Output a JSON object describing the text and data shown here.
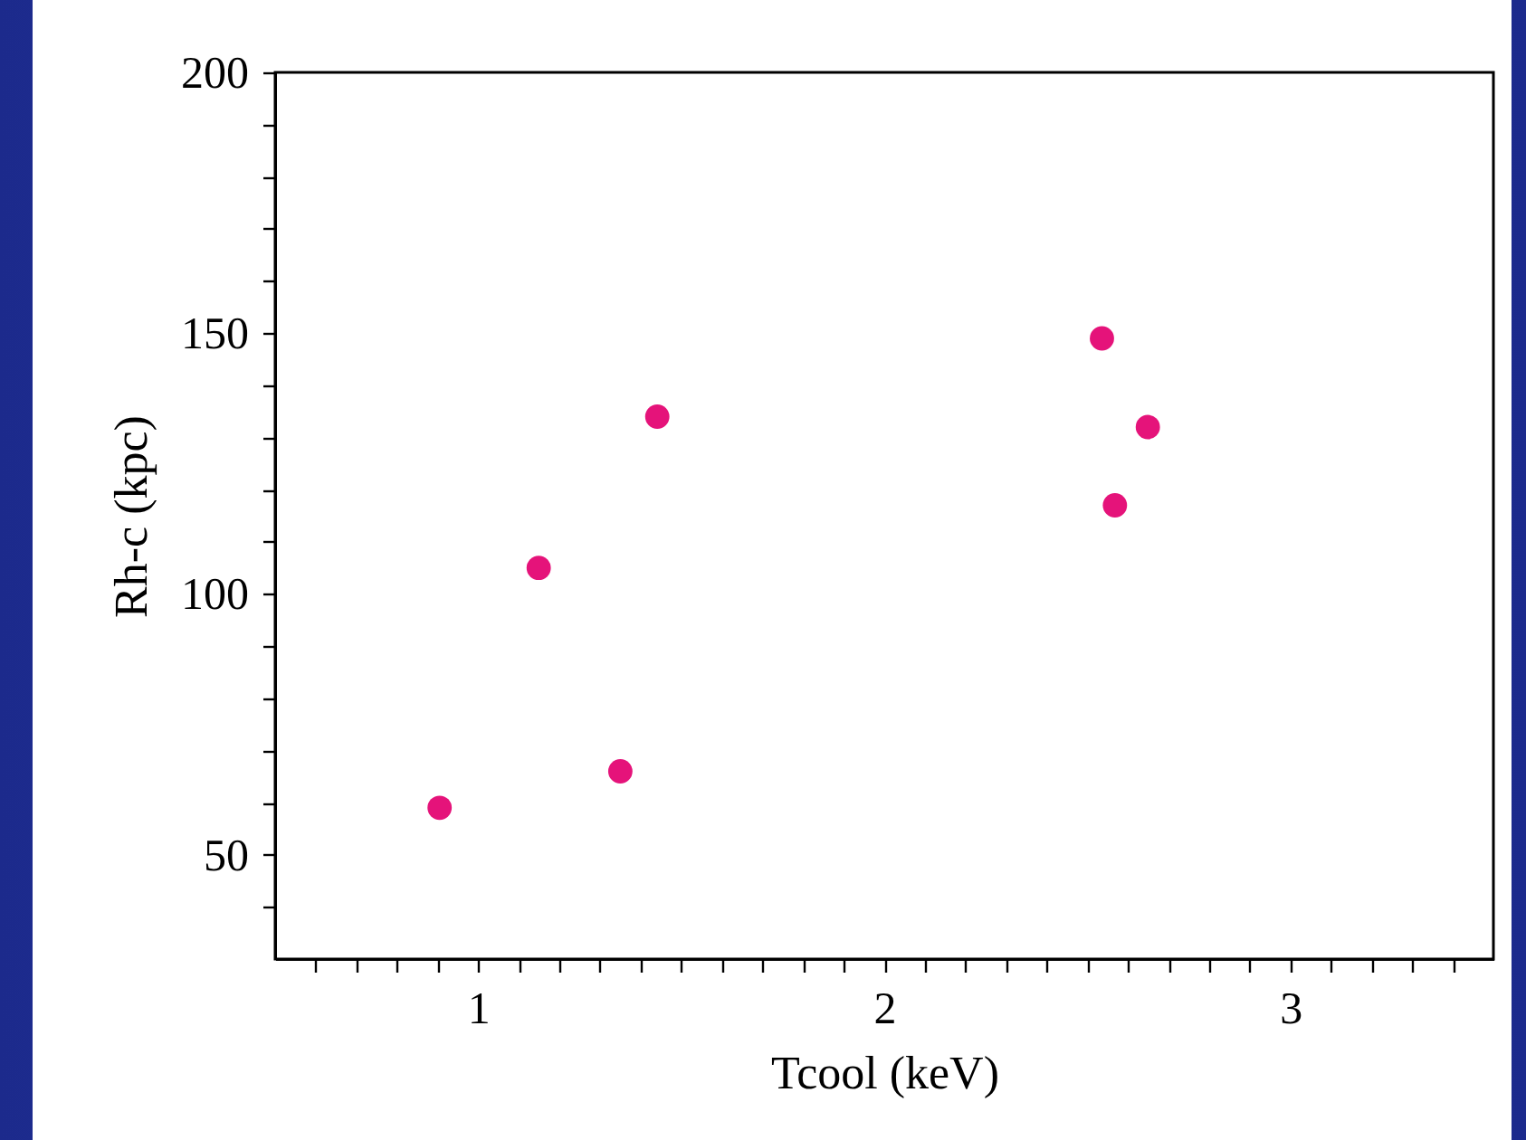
{
  "chart_data": {
    "type": "scatter",
    "xlabel": "Tcool (keV)",
    "ylabel": "Rh-c (kpc)",
    "x": [
      0.905,
      1.149,
      1.35,
      1.441,
      2.536,
      2.568,
      2.649
    ],
    "series": [
      {
        "color": "#e5137a",
        "values": [
          59,
          105,
          66,
          134,
          149,
          117,
          132
        ]
      }
    ],
    "marker": "circle",
    "grid": false,
    "legend": false,
    "xlim": [
      0.5,
      3.5
    ],
    "xticks": [
      {
        "value": 0.6,
        "label": null
      },
      {
        "value": 0.7,
        "label": null
      },
      {
        "value": 0.8,
        "label": null
      },
      {
        "value": 0.9,
        "label": null
      },
      1,
      {
        "value": 1.1,
        "label": null
      },
      {
        "value": 1.2,
        "label": null
      },
      {
        "value": 1.3,
        "label": null
      },
      {
        "value": 1.4,
        "label": null
      },
      {
        "value": 1.5,
        "label": null
      },
      {
        "value": 1.6,
        "label": null
      },
      {
        "value": 1.7,
        "label": null
      },
      {
        "value": 1.8,
        "label": null
      },
      {
        "value": 1.9,
        "label": null
      },
      2,
      {
        "value": 2.1,
        "label": null
      },
      {
        "value": 2.2,
        "label": null
      },
      {
        "value": 2.3,
        "label": null
      },
      {
        "value": 2.4,
        "label": null
      },
      {
        "value": 2.5,
        "label": null
      },
      {
        "value": 2.6,
        "label": null
      },
      {
        "value": 2.7,
        "label": null
      },
      {
        "value": 2.8,
        "label": null
      },
      {
        "value": 2.9,
        "label": null
      },
      3,
      {
        "value": 3.1,
        "label": null
      },
      {
        "value": 3.2,
        "label": null
      },
      {
        "value": 3.3,
        "label": null
      },
      {
        "value": 3.4,
        "label": null
      }
    ],
    "ylim": [
      30,
      200
    ],
    "yticks": [
      {
        "value": 40,
        "label": null
      },
      50,
      {
        "value": 60,
        "label": null
      },
      {
        "value": 70,
        "label": null
      },
      {
        "value": 80,
        "label": null
      },
      {
        "value": 90,
        "label": null
      },
      100,
      {
        "value": 110,
        "label": null
      },
      {
        "value": 120,
        "label": null
      },
      {
        "value": 130,
        "label": null
      },
      {
        "value": 140,
        "label": null
      },
      150,
      {
        "value": 160,
        "label": null
      },
      {
        "value": 170,
        "label": null
      },
      {
        "value": 180,
        "label": null
      },
      {
        "value": 190,
        "label": null
      },
      200
    ]
  }
}
